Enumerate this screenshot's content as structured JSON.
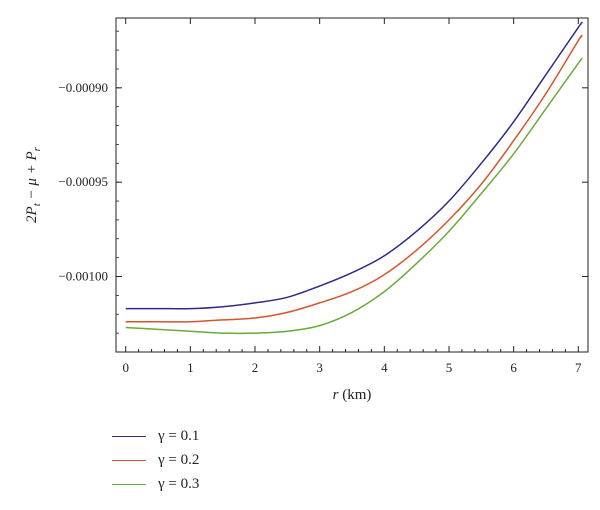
{
  "chart_data": {
    "type": "line",
    "title": "",
    "xlabel": "r (km)",
    "xlabel_var": "r",
    "xlabel_unit": " (km)",
    "ylabel_parts": [
      "2P",
      "t",
      " − μ + P",
      "r"
    ],
    "xlim": [
      -0.15,
      7.15
    ],
    "ylim": [
      -0.00104,
      -0.000863
    ],
    "x_ticks": [
      0,
      1,
      2,
      3,
      4,
      5,
      6,
      7
    ],
    "x_tick_labels": [
      "0",
      "1",
      "2",
      "3",
      "4",
      "5",
      "6",
      "7"
    ],
    "y_ticks": [
      -0.001,
      -0.00095,
      -0.0009
    ],
    "y_tick_labels": [
      "−0.00100",
      "−0.00095",
      "−0.00090"
    ],
    "grid": false,
    "legend_position": "bottom-left, below plot",
    "x": [
      0,
      0.5,
      1,
      1.5,
      2,
      2.5,
      3,
      3.5,
      4,
      4.5,
      5,
      5.5,
      6,
      6.5,
      7,
      7.05
    ],
    "series": [
      {
        "name": "γ = 0.1",
        "color": "#2e2a86",
        "values": [
          -0.001017,
          -0.001017,
          -0.001017,
          -0.001016,
          -0.001014,
          -0.001011,
          -0.001005,
          -0.000998,
          -0.000989,
          -0.000976,
          -0.00096,
          -0.00094,
          -0.000918,
          -0.000893,
          -0.000868,
          -0.000866
        ]
      },
      {
        "name": "γ = 0.2",
        "color": "#d8542a",
        "values": [
          -0.001024,
          -0.001024,
          -0.001024,
          -0.001023,
          -0.001022,
          -0.001019,
          -0.001014,
          -0.001008,
          -0.000999,
          -0.000986,
          -0.00097,
          -0.000951,
          -0.000928,
          -0.000903,
          -0.000875,
          -0.000873
        ]
      },
      {
        "name": "γ = 0.3",
        "color": "#6aaa3a",
        "values": [
          -0.001027,
          -0.001028,
          -0.001029,
          -0.00103,
          -0.00103,
          -0.001029,
          -0.001026,
          -0.001019,
          -0.001008,
          -0.000993,
          -0.000976,
          -0.000956,
          -0.000935,
          -0.000911,
          -0.000887,
          -0.000885
        ]
      }
    ]
  }
}
